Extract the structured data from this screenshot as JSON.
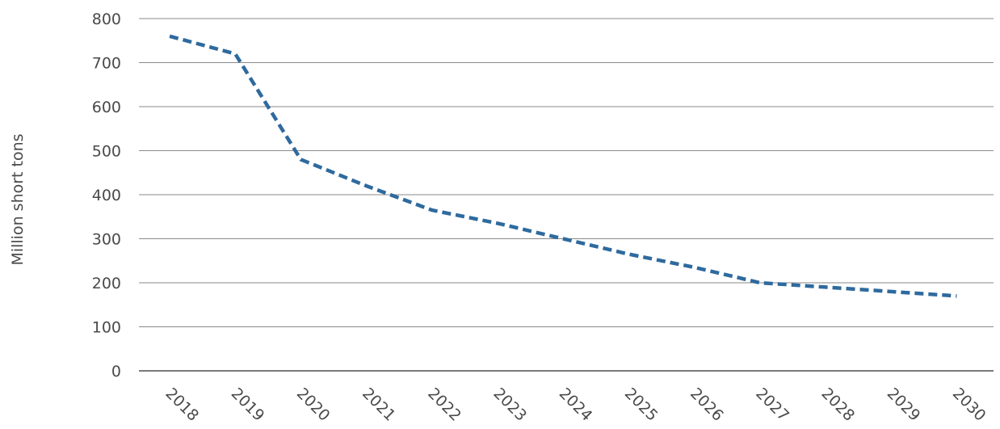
{
  "chart_data": {
    "type": "line",
    "title": "",
    "xlabel": "",
    "ylabel": "Million short tons",
    "ylim": [
      0,
      800
    ],
    "y_ticks": [
      "0",
      "100",
      "200",
      "300",
      "400",
      "500",
      "600",
      "700",
      "800"
    ],
    "categories": [
      "2018",
      "2019",
      "2020",
      "2021",
      "2022",
      "2023",
      "2024",
      "2025",
      "2026",
      "2027",
      "2028",
      "2029",
      "2030"
    ],
    "series": [
      {
        "values": [
          760,
          720,
          480,
          420,
          365,
          335,
          300,
          265,
          235,
          200,
          190,
          180,
          170
        ],
        "color": "#2e6a9e",
        "style": "dashed"
      }
    ],
    "grid": true,
    "legend": "none"
  }
}
